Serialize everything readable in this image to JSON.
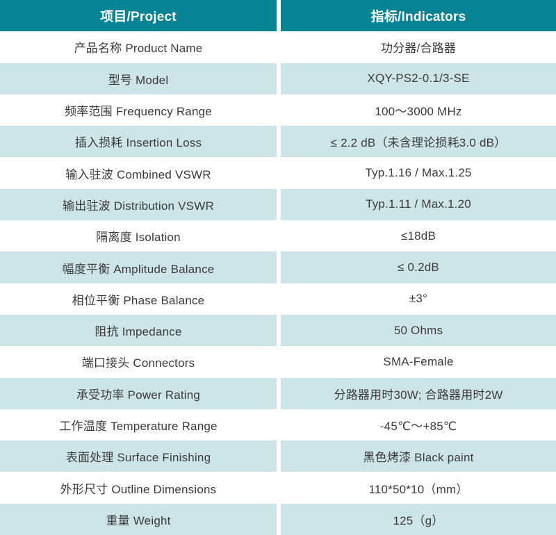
{
  "colors": {
    "header_bg": "#068494",
    "alt_row_bg": "#cde5e9",
    "row_bg": "#ffffff",
    "text_color": "#3b3b3b",
    "header_text": "#ffffff"
  },
  "header": {
    "project": "项目/Project",
    "indicators": "指标/Indicators"
  },
  "rows": [
    {
      "label": "产品名称 Product Name",
      "value": "功分器/合路器"
    },
    {
      "label": "型号 Model",
      "value": "XQY-PS2-0.1/3-SE"
    },
    {
      "label": "频率范围 Frequency Range",
      "value": "100～3000 MHz"
    },
    {
      "label": "插入损耗 Insertion Loss",
      "value": "≤ 2.2 dB（未含理论损耗3.0 dB）"
    },
    {
      "label": "输入驻波 Combined VSWR",
      "value": "Typ.1.16 / Max.1.25"
    },
    {
      "label": "输出驻波 Distribution VSWR",
      "value": "Typ.1.11 / Max.1.20"
    },
    {
      "label": "隔离度 Isolation",
      "value": "≤18dB"
    },
    {
      "label": "幅度平衡 Amplitude Balance",
      "value": "≤ 0.2dB"
    },
    {
      "label": "相位平衡 Phase Balance",
      "value": "±3°"
    },
    {
      "label": "阻抗 Impedance",
      "value": "50 Ohms"
    },
    {
      "label": "端口接头 Connectors",
      "value": "SMA-Female"
    },
    {
      "label": "承受功率 Power Rating",
      "value": "分路器用时30W; 合路器用时2W"
    },
    {
      "label": "工作温度 Temperature Range",
      "value": "-45℃～+85℃"
    },
    {
      "label": "表面处理 Surface Finishing",
      "value": "黑色烤漆 Black paint"
    },
    {
      "label": "外形尺寸 Outline Dimensions",
      "value": "110*50*10（mm）"
    },
    {
      "label": "重量 Weight",
      "value": "125（g）"
    }
  ]
}
